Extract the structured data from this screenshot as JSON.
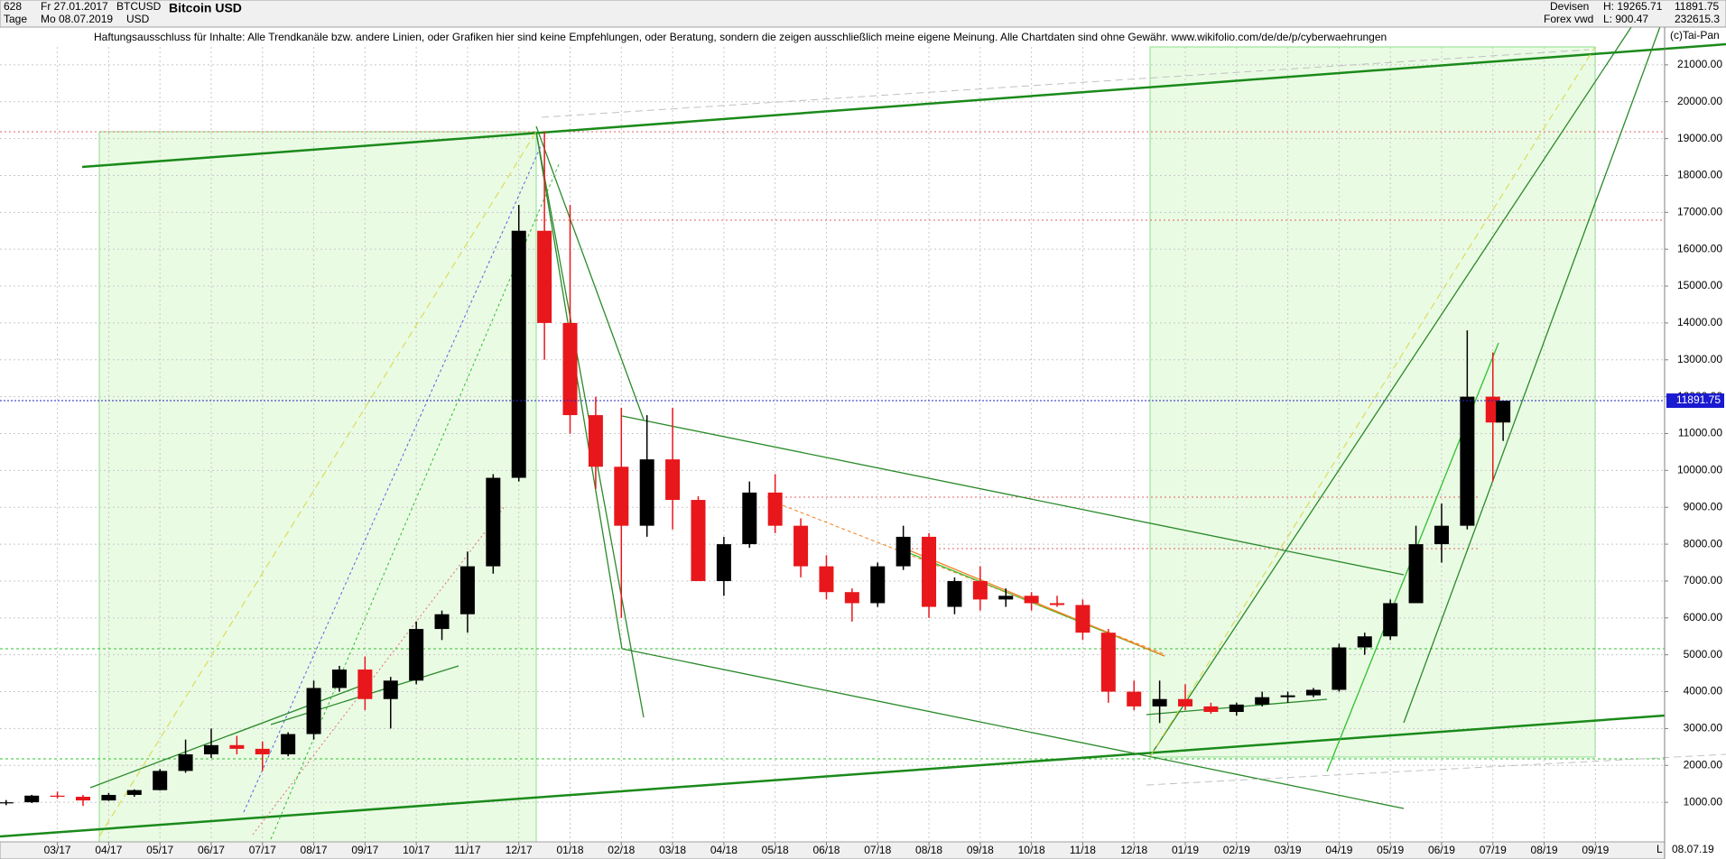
{
  "header": {
    "count": "628",
    "start_date": "Fr 27.01.2017",
    "end_date": "Mo 08.07.2019",
    "period": "Tage",
    "symbol": "BTCUSD",
    "currency": "USD",
    "exchange": "Devisen",
    "source": "Forex vwd",
    "high": "H: 19265.71",
    "low": "L: 900.47",
    "last": "11891.75",
    "volume": "232615.3",
    "copyright": "(c)Tai-Pan",
    "disclaimer": "Haftungsausschluss für Inhalte: Alle Trendkanäle bzw. andere Linien, oder Grafiken hier sind keine Empfehlungen, oder Beratung, sondern die zeigen ausschließlich meine eigene Meinung. Alle Chartdaten sind ohne Gewähr.  www.wikifolio.com/de/de/p/cyberwaehrungen"
  },
  "chart_data": {
    "type": "candlestick",
    "title": "Bitcoin USD",
    "x": [
      1,
      1.5,
      2,
      2.5,
      3,
      3.5,
      4,
      4.5,
      5,
      5.5,
      6,
      6.5,
      7,
      7.5,
      8,
      8.5,
      9,
      9.5,
      10,
      10.5,
      11,
      11.5,
      12,
      12.5,
      13,
      13.5,
      14,
      14.5,
      15,
      15.5,
      16,
      16.5,
      17,
      17.5,
      18,
      18.5,
      19,
      19.5,
      20,
      20.5,
      21,
      21.5,
      22,
      22.5,
      23,
      23.5,
      24,
      24.5,
      25,
      25.5,
      26,
      26.5,
      27,
      27.5,
      28,
      28.5,
      29,
      29.5,
      30,
      30.2
    ],
    "open": [
      970,
      1000,
      1180,
      1150,
      1050,
      1200,
      1330,
      1850,
      2300,
      2550,
      2450,
      2300,
      2850,
      4100,
      4600,
      3800,
      4300,
      5700,
      6100,
      7400,
      9800,
      16500,
      14000,
      11500,
      10100,
      8500,
      10300,
      9200,
      7000,
      8000,
      9400,
      8500,
      7400,
      6700,
      6400,
      7400,
      8200,
      6300,
      7000,
      6500,
      6600,
      6400,
      6350,
      5600,
      4000,
      3600,
      3800,
      3600,
      3450,
      3650,
      3850,
      3900,
      4050,
      5200,
      5500,
      6400,
      8000,
      8500,
      12000,
      11300
    ],
    "high": [
      1060,
      1200,
      1290,
      1200,
      1250,
      1350,
      1900,
      2700,
      3000,
      2800,
      2650,
      2900,
      4300,
      4700,
      4950,
      4400,
      5900,
      6200,
      7800,
      9900,
      17200,
      19200,
      17200,
      12000,
      11700,
      11500,
      11700,
      9300,
      8200,
      9700,
      9900,
      8700,
      7700,
      6800,
      7500,
      8500,
      8300,
      7100,
      7400,
      6800,
      6700,
      6600,
      6500,
      5700,
      4300,
      4300,
      4200,
      3700,
      3700,
      4000,
      4000,
      4100,
      5300,
      5600,
      6500,
      8500,
      9100,
      13800,
      13200,
      11900
    ],
    "low": [
      920,
      980,
      1100,
      900,
      1040,
      1150,
      1320,
      1800,
      2200,
      2300,
      1850,
      2250,
      2700,
      4000,
      3500,
      3000,
      4200,
      5400,
      5600,
      7200,
      9700,
      13000,
      11000,
      9500,
      6000,
      8200,
      8400,
      7000,
      6600,
      7900,
      8300,
      7100,
      6500,
      5900,
      6300,
      7300,
      6000,
      6100,
      6200,
      6300,
      6200,
      6300,
      5400,
      3700,
      3500,
      3150,
      3500,
      3400,
      3350,
      3600,
      3700,
      3850,
      4000,
      5000,
      5400,
      6400,
      7500,
      8400,
      9700,
      10800
    ],
    "close": [
      1000,
      1180,
      1150,
      1050,
      1200,
      1330,
      1850,
      2300,
      2550,
      2450,
      2300,
      2850,
      4100,
      4600,
      3800,
      4300,
      5700,
      6100,
      7400,
      9800,
      16500,
      14000,
      11500,
      10100,
      8500,
      10300,
      9200,
      7000,
      8000,
      9400,
      8500,
      7400,
      6700,
      6400,
      7400,
      8200,
      6300,
      7000,
      6500,
      6600,
      6400,
      6350,
      5600,
      4000,
      3600,
      3800,
      3600,
      3450,
      3650,
      3850,
      3900,
      4050,
      5200,
      5500,
      6400,
      8000,
      8500,
      12000,
      11300,
      11891.75
    ],
    "up_color": "#000000",
    "down_color": "#e8171b",
    "xlim": [
      0.88,
      33.35
    ],
    "xticks": [
      {
        "value": 2,
        "label": "03/17"
      },
      {
        "value": 3,
        "label": "04/17"
      },
      {
        "value": 4,
        "label": "05/17"
      },
      {
        "value": 5,
        "label": "06/17"
      },
      {
        "value": 6,
        "label": "07/17"
      },
      {
        "value": 7,
        "label": "08/17"
      },
      {
        "value": 8,
        "label": "09/17"
      },
      {
        "value": 9,
        "label": "10/17"
      },
      {
        "value": 10,
        "label": "11/17"
      },
      {
        "value": 11,
        "label": "12/17"
      },
      {
        "value": 12,
        "label": "01/18"
      },
      {
        "value": 13,
        "label": "02/18"
      },
      {
        "value": 14,
        "label": "03/18"
      },
      {
        "value": 15,
        "label": "04/18"
      },
      {
        "value": 16,
        "label": "05/18"
      },
      {
        "value": 17,
        "label": "06/18"
      },
      {
        "value": 18,
        "label": "07/18"
      },
      {
        "value": 19,
        "label": "08/18"
      },
      {
        "value": 20,
        "label": "09/18"
      },
      {
        "value": 21,
        "label": "10/18"
      },
      {
        "value": 22,
        "label": "11/18"
      },
      {
        "value": 23,
        "label": "12/18"
      },
      {
        "value": 24,
        "label": "01/19"
      },
      {
        "value": 25,
        "label": "02/19"
      },
      {
        "value": 26,
        "label": "03/19"
      },
      {
        "value": 27,
        "label": "04/19"
      },
      {
        "value": 28,
        "label": "05/19"
      },
      {
        "value": 29,
        "label": "06/19"
      },
      {
        "value": 30,
        "label": "07/19"
      },
      {
        "value": 31,
        "label": "08/19"
      },
      {
        "value": 32,
        "label": "09/19"
      }
    ],
    "x_end_label": "08.07.19",
    "x_corner_label": "L",
    "ylim": [
      0,
      22000
    ],
    "yticks": [
      {
        "value": 1000,
        "label": "1000.00"
      },
      {
        "value": 2000,
        "label": "2000.00"
      },
      {
        "value": 3000,
        "label": "3000.00"
      },
      {
        "value": 4000,
        "label": "4000.00"
      },
      {
        "value": 5000,
        "label": "5000.00"
      },
      {
        "value": 6000,
        "label": "6000.00"
      },
      {
        "value": 7000,
        "label": "7000.00"
      },
      {
        "value": 8000,
        "label": "8000.00"
      },
      {
        "value": 9000,
        "label": "9000.00"
      },
      {
        "value": 10000,
        "label": "10000.00"
      },
      {
        "value": 11000,
        "label": "11000.00"
      },
      {
        "value": 12000,
        "label": "12000.00"
      },
      {
        "value": 13000,
        "label": "13000.00"
      },
      {
        "value": 14000,
        "label": "14000.00"
      },
      {
        "value": 15000,
        "label": "15000.00"
      },
      {
        "value": 16000,
        "label": "16000.00"
      },
      {
        "value": 17000,
        "label": "17000.00"
      },
      {
        "value": 18000,
        "label": "18000.00"
      },
      {
        "value": 19000,
        "label": "19000.00"
      },
      {
        "value": 20000,
        "label": "20000.00"
      },
      {
        "value": 21000,
        "label": "21000.00"
      }
    ],
    "current_price": {
      "value": 11891.75,
      "label": "11891.75"
    },
    "grid": true
  }
}
